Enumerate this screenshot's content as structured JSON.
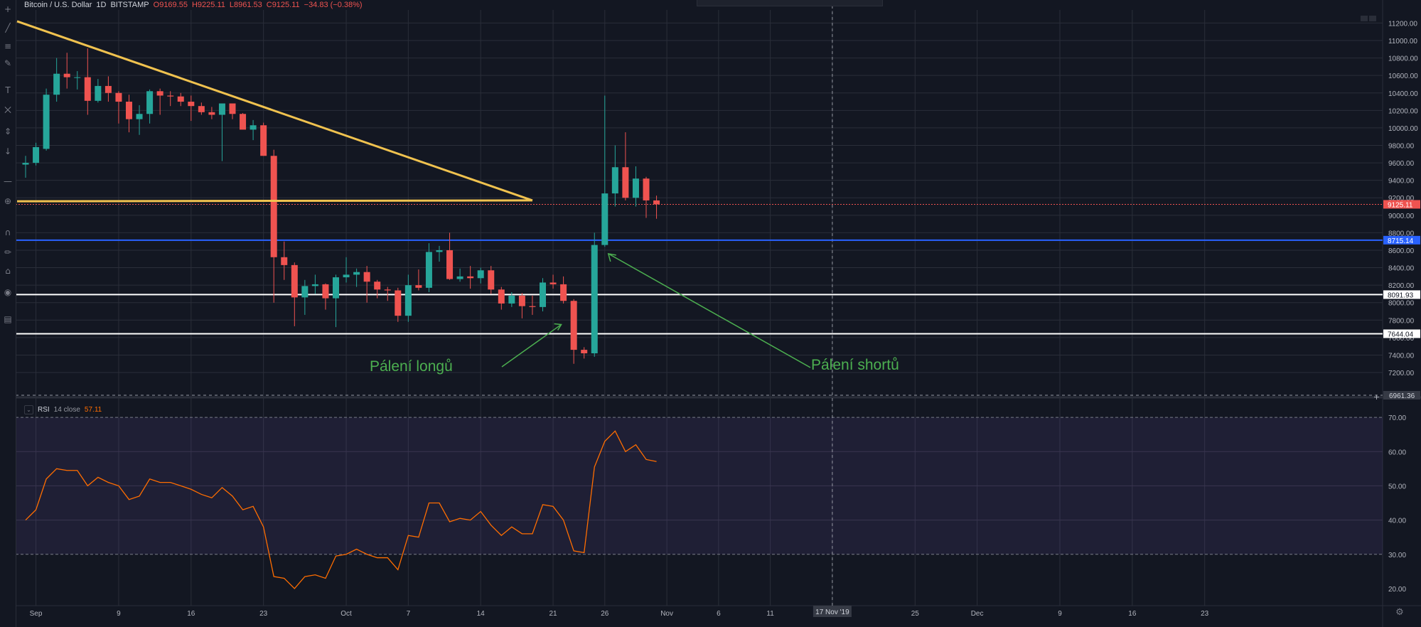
{
  "header": {
    "symbol": "Bitcoin / U.S. Dollar",
    "interval": "1D",
    "exchange": "BITSTAMP",
    "open": "O9169.55",
    "high": "H9225.11",
    "low": "L8961.53",
    "close": "C9125.11",
    "change": "−34.83 (−0.38%)"
  },
  "toolbar": {
    "icons": [
      "cursor-icon",
      "trend-line-icon",
      "fib-icon",
      "brush-icon",
      "text-icon",
      "pattern-icon",
      "measure-icon",
      "arrow-down-icon",
      "ruler-icon",
      "zoom-icon",
      "magnet-icon",
      "lock-draw-icon",
      "lock-icon",
      "eye-icon",
      "trash-icon"
    ]
  },
  "annotations": {
    "longs": "Pálení longů",
    "shorts": "Pálení shortů"
  },
  "chart_data": [
    {
      "type": "candlestick",
      "symbol": "Bitcoin / U.S. Dollar",
      "interval": "1D",
      "exchange": "BITSTAMP",
      "y_ticks": [
        7200,
        7400,
        7600,
        7800,
        8000,
        8200,
        8400,
        8600,
        8800,
        9000,
        9200,
        9400,
        9600,
        9800,
        10000,
        10200,
        10400,
        10600,
        10800,
        11000,
        11200
      ],
      "y_tick_labels": [
        "7200.00",
        "7400.00",
        "7600.00",
        "7800.00",
        "8000.00",
        "8200.00",
        "8400.00",
        "8600.00",
        "8800.00",
        "9000.00",
        "9200.00",
        "9400.00",
        "9600.00",
        "9800.00",
        "10000.00",
        "10200.00",
        "10400.00",
        "10600.00",
        "10800.00",
        "11000.00",
        "11200.00"
      ],
      "ylim": [
        6940,
        11350
      ],
      "x_axis_labels": [
        {
          "label": "Sep",
          "date": "2019-09-01"
        },
        {
          "label": "9",
          "date": "2019-09-09"
        },
        {
          "label": "16",
          "date": "2019-09-16"
        },
        {
          "label": "23",
          "date": "2019-09-23"
        },
        {
          "label": "Oct",
          "date": "2019-10-01"
        },
        {
          "label": "7",
          "date": "2019-10-07"
        },
        {
          "label": "14",
          "date": "2019-10-14"
        },
        {
          "label": "21",
          "date": "2019-10-21"
        },
        {
          "label": "26",
          "date": "2019-10-26"
        },
        {
          "label": "Nov",
          "date": "2019-11-01"
        },
        {
          "label": "6",
          "date": "2019-11-06"
        },
        {
          "label": "11",
          "date": "2019-11-11"
        },
        {
          "label": "17 Nov '19",
          "date": "2019-11-17",
          "highlight": true
        },
        {
          "label": "25",
          "date": "2019-11-25"
        },
        {
          "label": "Dec",
          "date": "2019-12-01"
        },
        {
          "label": "9",
          "date": "2019-12-09"
        },
        {
          "label": "16",
          "date": "2019-12-16"
        },
        {
          "label": "23",
          "date": "2019-12-23"
        }
      ],
      "candles": [
        {
          "date": "2019-08-31",
          "o": 9580,
          "h": 9680,
          "l": 9430,
          "c": 9600
        },
        {
          "date": "2019-09-01",
          "o": 9600,
          "h": 9830,
          "l": 9570,
          "c": 9780
        },
        {
          "date": "2019-09-02",
          "o": 9760,
          "h": 10450,
          "l": 9740,
          "c": 10380
        },
        {
          "date": "2019-09-03",
          "o": 10380,
          "h": 10800,
          "l": 10300,
          "c": 10620
        },
        {
          "date": "2019-09-04",
          "o": 10620,
          "h": 10860,
          "l": 10450,
          "c": 10580
        },
        {
          "date": "2019-09-05",
          "o": 10580,
          "h": 10650,
          "l": 10440,
          "c": 10580
        },
        {
          "date": "2019-09-06",
          "o": 10580,
          "h": 10910,
          "l": 10150,
          "c": 10310
        },
        {
          "date": "2019-09-07",
          "o": 10310,
          "h": 10560,
          "l": 10290,
          "c": 10480
        },
        {
          "date": "2019-09-08",
          "o": 10480,
          "h": 10590,
          "l": 10300,
          "c": 10400
        },
        {
          "date": "2019-09-09",
          "o": 10400,
          "h": 10420,
          "l": 10050,
          "c": 10300
        },
        {
          "date": "2019-09-10",
          "o": 10300,
          "h": 10380,
          "l": 9950,
          "c": 10100
        },
        {
          "date": "2019-09-11",
          "o": 10100,
          "h": 10260,
          "l": 9920,
          "c": 10160
        },
        {
          "date": "2019-09-12",
          "o": 10160,
          "h": 10440,
          "l": 10050,
          "c": 10420
        },
        {
          "date": "2019-09-13",
          "o": 10420,
          "h": 10450,
          "l": 10150,
          "c": 10370
        },
        {
          "date": "2019-09-14",
          "o": 10370,
          "h": 10420,
          "l": 10250,
          "c": 10360
        },
        {
          "date": "2019-09-15",
          "o": 10360,
          "h": 10400,
          "l": 10250,
          "c": 10300
        },
        {
          "date": "2019-09-16",
          "o": 10300,
          "h": 10370,
          "l": 10080,
          "c": 10250
        },
        {
          "date": "2019-09-17",
          "o": 10250,
          "h": 10290,
          "l": 10150,
          "c": 10180
        },
        {
          "date": "2019-09-18",
          "o": 10180,
          "h": 10240,
          "l": 10100,
          "c": 10150
        },
        {
          "date": "2019-09-19",
          "o": 10150,
          "h": 10250,
          "l": 9620,
          "c": 10280
        },
        {
          "date": "2019-09-20",
          "o": 10280,
          "h": 10280,
          "l": 10100,
          "c": 10160
        },
        {
          "date": "2019-09-21",
          "o": 10160,
          "h": 10170,
          "l": 10000,
          "c": 9980
        },
        {
          "date": "2019-09-22",
          "o": 9980,
          "h": 10090,
          "l": 9860,
          "c": 10030
        },
        {
          "date": "2019-09-23",
          "o": 10030,
          "h": 10060,
          "l": 9680,
          "c": 9680
        },
        {
          "date": "2019-09-24",
          "o": 9680,
          "h": 9750,
          "l": 8000,
          "c": 8520
        },
        {
          "date": "2019-09-25",
          "o": 8520,
          "h": 8700,
          "l": 8260,
          "c": 8430
        },
        {
          "date": "2019-09-26",
          "o": 8430,
          "h": 8460,
          "l": 7730,
          "c": 8060
        },
        {
          "date": "2019-09-27",
          "o": 8060,
          "h": 8260,
          "l": 7860,
          "c": 8190
        },
        {
          "date": "2019-09-28",
          "o": 8190,
          "h": 8320,
          "l": 8100,
          "c": 8210
        },
        {
          "date": "2019-09-29",
          "o": 8210,
          "h": 8220,
          "l": 7920,
          "c": 8050
        },
        {
          "date": "2019-09-30",
          "o": 8050,
          "h": 8320,
          "l": 7720,
          "c": 8290
        },
        {
          "date": "2019-10-01",
          "o": 8290,
          "h": 8520,
          "l": 8230,
          "c": 8320
        },
        {
          "date": "2019-10-02",
          "o": 8320,
          "h": 8390,
          "l": 8180,
          "c": 8350
        },
        {
          "date": "2019-10-03",
          "o": 8350,
          "h": 8420,
          "l": 8000,
          "c": 8240
        },
        {
          "date": "2019-10-04",
          "o": 8240,
          "h": 8260,
          "l": 8050,
          "c": 8150
        },
        {
          "date": "2019-10-05",
          "o": 8150,
          "h": 8180,
          "l": 8020,
          "c": 8140
        },
        {
          "date": "2019-10-06",
          "o": 8140,
          "h": 8170,
          "l": 7780,
          "c": 7850
        },
        {
          "date": "2019-10-07",
          "o": 7850,
          "h": 8320,
          "l": 7780,
          "c": 8200
        },
        {
          "date": "2019-10-08",
          "o": 8200,
          "h": 8380,
          "l": 8140,
          "c": 8170
        },
        {
          "date": "2019-10-09",
          "o": 8170,
          "h": 8680,
          "l": 8120,
          "c": 8580
        },
        {
          "date": "2019-10-10",
          "o": 8580,
          "h": 8650,
          "l": 8470,
          "c": 8600
        },
        {
          "date": "2019-10-11",
          "o": 8600,
          "h": 8800,
          "l": 8260,
          "c": 8270
        },
        {
          "date": "2019-10-12",
          "o": 8270,
          "h": 8390,
          "l": 8240,
          "c": 8300
        },
        {
          "date": "2019-10-13",
          "o": 8300,
          "h": 8420,
          "l": 8160,
          "c": 8280
        },
        {
          "date": "2019-10-14",
          "o": 8280,
          "h": 8400,
          "l": 8220,
          "c": 8370
        },
        {
          "date": "2019-10-15",
          "o": 8370,
          "h": 8420,
          "l": 8100,
          "c": 8150
        },
        {
          "date": "2019-10-16",
          "o": 8150,
          "h": 8180,
          "l": 7920,
          "c": 7990
        },
        {
          "date": "2019-10-17",
          "o": 7990,
          "h": 8120,
          "l": 7950,
          "c": 8080
        },
        {
          "date": "2019-10-18",
          "o": 8080,
          "h": 8110,
          "l": 7820,
          "c": 7960
        },
        {
          "date": "2019-10-19",
          "o": 7960,
          "h": 8080,
          "l": 7860,
          "c": 7950
        },
        {
          "date": "2019-10-20",
          "o": 7950,
          "h": 8280,
          "l": 7900,
          "c": 8230
        },
        {
          "date": "2019-10-21",
          "o": 8230,
          "h": 8320,
          "l": 8160,
          "c": 8210
        },
        {
          "date": "2019-10-22",
          "o": 8210,
          "h": 8300,
          "l": 7990,
          "c": 8020
        },
        {
          "date": "2019-10-23",
          "o": 8020,
          "h": 8040,
          "l": 7300,
          "c": 7460
        },
        {
          "date": "2019-10-24",
          "o": 7460,
          "h": 7490,
          "l": 7360,
          "c": 7420
        },
        {
          "date": "2019-10-25",
          "o": 7420,
          "h": 8800,
          "l": 7380,
          "c": 8660
        },
        {
          "date": "2019-10-26",
          "o": 8660,
          "h": 10370,
          "l": 8640,
          "c": 9250
        },
        {
          "date": "2019-10-27",
          "o": 9250,
          "h": 9800,
          "l": 9100,
          "c": 9550
        },
        {
          "date": "2019-10-28",
          "o": 9550,
          "h": 9950,
          "l": 9170,
          "c": 9200
        },
        {
          "date": "2019-10-29",
          "o": 9200,
          "h": 9560,
          "l": 9100,
          "c": 9420
        },
        {
          "date": "2019-10-30",
          "o": 9420,
          "h": 9440,
          "l": 8970,
          "c": 9170
        },
        {
          "date": "2019-10-31",
          "o": 9170,
          "h": 9225,
          "l": 8960,
          "c": 9125
        }
      ],
      "trend_lines": [
        {
          "from": {
            "date": "2019-08-31",
            "price": 11220
          },
          "to": {
            "date": "2019-10-19",
            "price": 9170
          },
          "color": "#f0c24f"
        },
        {
          "from": {
            "date": "2019-08-31",
            "price": 9160
          },
          "to": {
            "date": "2019-10-19",
            "price": 9170
          },
          "color": "#f0c24f"
        }
      ],
      "horizontal_levels": [
        {
          "price": 9125.11,
          "label": "9125.11",
          "color": "#ef5350",
          "style": "dotted",
          "tag_bg": "#ef5350",
          "tag_fg": "#ffffff"
        },
        {
          "price": 8715.14,
          "label": "8715.14",
          "color": "#2962ff",
          "style": "solid",
          "tag_bg": "#2962ff",
          "tag_fg": "#ffffff"
        },
        {
          "price": 8091.93,
          "label": "8091.93",
          "color": "#ffffff",
          "style": "solid",
          "tag_bg": "#ffffff",
          "tag_fg": "#131722"
        },
        {
          "price": 7644.04,
          "label": "7644.04",
          "color": "#ffffff",
          "style": "solid",
          "tag_bg": "#ffffff",
          "tag_fg": "#131722"
        }
      ],
      "price_tag_bottom": "6961.36",
      "colors": {
        "up": "#26a69a",
        "down": "#ef5350",
        "background": "#131722",
        "grid": "#2a2e39"
      }
    },
    {
      "type": "line",
      "indicator": "RSI",
      "params": "14 close",
      "current_value": "57.11",
      "ylim": [
        15,
        75
      ],
      "y_ticks": [
        20,
        30,
        40,
        50,
        60,
        70
      ],
      "y_tick_labels": [
        "20.00",
        "30.00",
        "40.00",
        "50.00",
        "60.00",
        "70.00"
      ],
      "band": {
        "upper": 70,
        "lower": 30,
        "fill": "#7e57c2"
      },
      "line_color": "#ff6d00",
      "series": [
        {
          "date": "2019-08-31",
          "value": 40
        },
        {
          "date": "2019-09-01",
          "value": 43
        },
        {
          "date": "2019-09-02",
          "value": 52
        },
        {
          "date": "2019-09-03",
          "value": 55
        },
        {
          "date": "2019-09-04",
          "value": 54.5
        },
        {
          "date": "2019-09-05",
          "value": 54.5
        },
        {
          "date": "2019-09-06",
          "value": 50
        },
        {
          "date": "2019-09-07",
          "value": 52.5
        },
        {
          "date": "2019-09-08",
          "value": 51
        },
        {
          "date": "2019-09-09",
          "value": 50
        },
        {
          "date": "2019-09-10",
          "value": 46
        },
        {
          "date": "2019-09-11",
          "value": 47
        },
        {
          "date": "2019-09-12",
          "value": 52
        },
        {
          "date": "2019-09-13",
          "value": 51
        },
        {
          "date": "2019-09-14",
          "value": 51
        },
        {
          "date": "2019-09-15",
          "value": 50
        },
        {
          "date": "2019-09-16",
          "value": 49
        },
        {
          "date": "2019-09-17",
          "value": 47.5
        },
        {
          "date": "2019-09-18",
          "value": 46.5
        },
        {
          "date": "2019-09-19",
          "value": 49.5
        },
        {
          "date": "2019-09-20",
          "value": 47
        },
        {
          "date": "2019-09-21",
          "value": 43
        },
        {
          "date": "2019-09-22",
          "value": 44
        },
        {
          "date": "2019-09-23",
          "value": 38
        },
        {
          "date": "2019-09-24",
          "value": 23.5
        },
        {
          "date": "2019-09-25",
          "value": 23
        },
        {
          "date": "2019-09-26",
          "value": 20
        },
        {
          "date": "2019-09-27",
          "value": 23.5
        },
        {
          "date": "2019-09-28",
          "value": 24
        },
        {
          "date": "2019-09-29",
          "value": 23
        },
        {
          "date": "2019-09-30",
          "value": 29.5
        },
        {
          "date": "2019-10-01",
          "value": 30
        },
        {
          "date": "2019-10-02",
          "value": 31.5
        },
        {
          "date": "2019-10-03",
          "value": 30
        },
        {
          "date": "2019-10-04",
          "value": 29
        },
        {
          "date": "2019-10-05",
          "value": 29
        },
        {
          "date": "2019-10-06",
          "value": 25.5
        },
        {
          "date": "2019-10-07",
          "value": 35.5
        },
        {
          "date": "2019-10-08",
          "value": 35
        },
        {
          "date": "2019-10-09",
          "value": 45
        },
        {
          "date": "2019-10-10",
          "value": 45
        },
        {
          "date": "2019-10-11",
          "value": 39.5
        },
        {
          "date": "2019-10-12",
          "value": 40.5
        },
        {
          "date": "2019-10-13",
          "value": 40
        },
        {
          "date": "2019-10-14",
          "value": 42.5
        },
        {
          "date": "2019-10-15",
          "value": 38.5
        },
        {
          "date": "2019-10-16",
          "value": 35.5
        },
        {
          "date": "2019-10-17",
          "value": 38
        },
        {
          "date": "2019-10-18",
          "value": 36
        },
        {
          "date": "2019-10-19",
          "value": 36
        },
        {
          "date": "2019-10-20",
          "value": 44.5
        },
        {
          "date": "2019-10-21",
          "value": 44
        },
        {
          "date": "2019-10-22",
          "value": 40
        },
        {
          "date": "2019-10-23",
          "value": 31
        },
        {
          "date": "2019-10-24",
          "value": 30.5
        },
        {
          "date": "2019-10-25",
          "value": 55.5
        },
        {
          "date": "2019-10-26",
          "value": 63
        },
        {
          "date": "2019-10-27",
          "value": 66
        },
        {
          "date": "2019-10-28",
          "value": 60
        },
        {
          "date": "2019-10-29",
          "value": 62
        },
        {
          "date": "2019-10-30",
          "value": 57.7
        },
        {
          "date": "2019-10-31",
          "value": 57.1
        }
      ]
    }
  ]
}
